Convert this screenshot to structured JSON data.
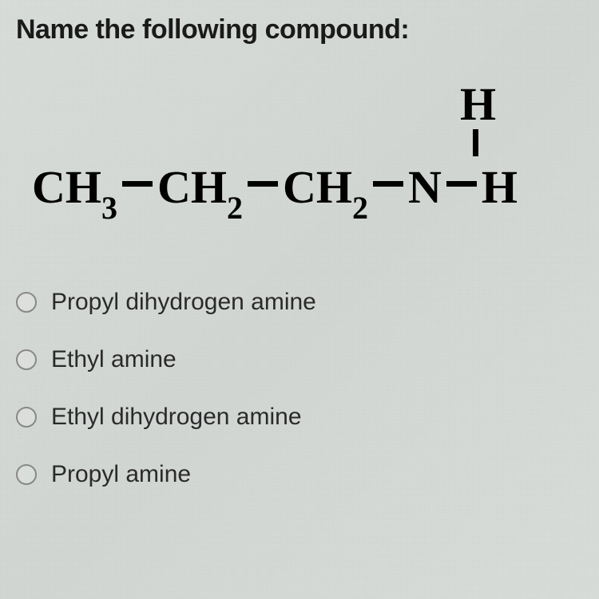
{
  "question": {
    "prompt": "Name the following compound:"
  },
  "structure": {
    "top_atom": "H",
    "chain": [
      {
        "symbol": "CH",
        "sub": "3"
      },
      {
        "symbol": "CH",
        "sub": "2"
      },
      {
        "symbol": "CH",
        "sub": "2"
      },
      {
        "symbol": "N",
        "sub": ""
      },
      {
        "symbol": "H",
        "sub": ""
      }
    ]
  },
  "options": [
    {
      "id": "opt-a",
      "label": "Propyl dihydrogen amine"
    },
    {
      "id": "opt-b",
      "label": "Ethyl amine"
    },
    {
      "id": "opt-c",
      "label": "Ethyl dihydrogen amine"
    },
    {
      "id": "opt-d",
      "label": "Propyl amine"
    }
  ],
  "colors": {
    "text": "#1a1a1a",
    "structure": "#000000",
    "option_text": "#2a2a2a",
    "radio_border": "#888888",
    "background": "#d6dad6"
  },
  "typography": {
    "question_fontsize": 34,
    "structure_fontsize": 58,
    "subscript_fontsize": 40,
    "option_fontsize": 30,
    "font_family_body": "Arial",
    "font_family_structure": "Times New Roman"
  }
}
